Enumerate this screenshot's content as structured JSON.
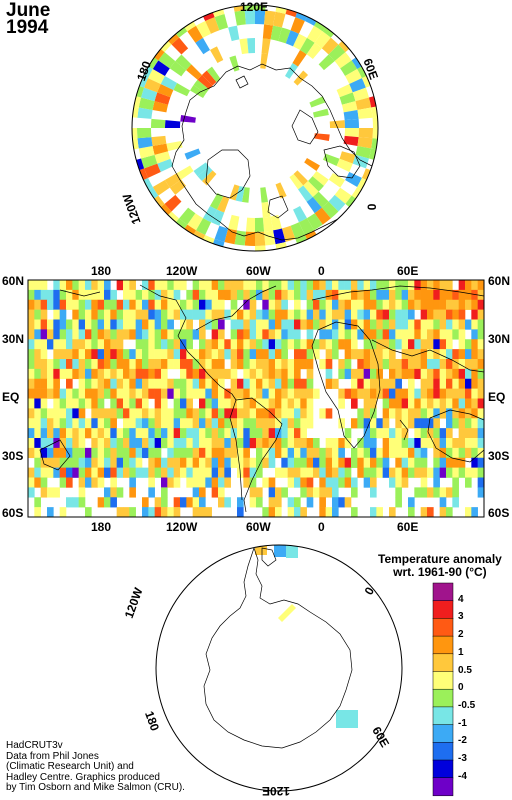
{
  "title": {
    "month": "June",
    "year": "1994"
  },
  "north_polar_labels": {
    "top": "120E",
    "right": "60E",
    "lower_right": "0",
    "left": "180",
    "lower_left": "120W"
  },
  "map_top_labels": [
    "180",
    "120W",
    "60W",
    "0",
    "60E"
  ],
  "map_bottom_labels": [
    "180",
    "120W",
    "60W",
    "0",
    "60E"
  ],
  "map_lat_labels": [
    "60N",
    "30N",
    "EQ",
    "30S",
    "60S"
  ],
  "south_polar_labels": {
    "upper_left": "120W",
    "upper_right": "0",
    "lower_left": "180",
    "lower_right": "60E",
    "bottom": "120E"
  },
  "legend": {
    "title_line1": "Temperature anomaly",
    "title_line2": "wrt. 1961-90  (°C)",
    "ticks": [
      "4",
      "3",
      "2",
      "1",
      "0.5",
      "0",
      "-0.5",
      "-1",
      "-2",
      "-3",
      "-4"
    ],
    "colors": [
      "#a0148c",
      "#f01e1e",
      "#ff5a14",
      "#ff960f",
      "#ffc83c",
      "#ffff78",
      "#9bf05a",
      "#78e6e6",
      "#3caaf5",
      "#1e6ef0",
      "#0000dc",
      "#6e00c8"
    ]
  },
  "credits": [
    "HadCRUT3v",
    "Data from Phil Jones",
    "(Climatic Research Unit) and",
    "Hadley Centre.  Graphics produced",
    "by Tim Osborn and Mike Salmon (CRU)."
  ]
}
